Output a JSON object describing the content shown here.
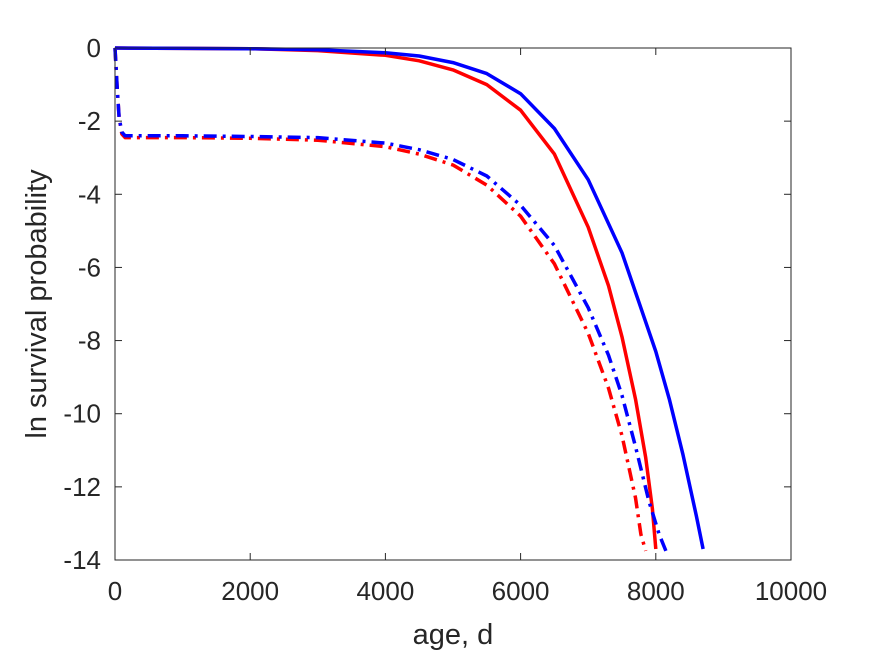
{
  "chart_data": {
    "type": "line",
    "title": "",
    "xlabel": "age, d",
    "ylabel": "ln survival probability",
    "xlim": [
      0,
      10000
    ],
    "ylim": [
      -14,
      0
    ],
    "xticks": [
      0,
      2000,
      4000,
      6000,
      8000,
      10000
    ],
    "yticks": [
      0,
      -2,
      -4,
      -6,
      -8,
      -10,
      -12,
      -14
    ],
    "xtick_labels": [
      "0",
      "2000",
      "4000",
      "6000",
      "8000",
      "10000"
    ],
    "ytick_labels": [
      "0",
      "-2",
      "-4",
      "-6",
      "-8",
      "-10",
      "-12",
      "-14"
    ],
    "grid": false,
    "legend": false,
    "series": [
      {
        "color": "#ff0000",
        "style": "solid",
        "x": [
          0,
          1000,
          2000,
          3000,
          4000,
          4500,
          5000,
          5500,
          6000,
          6500,
          7000,
          7300,
          7500,
          7700,
          7850,
          7950,
          8000
        ],
        "y": [
          0,
          -0.01,
          -0.02,
          -0.07,
          -0.2,
          -0.35,
          -0.6,
          -1.0,
          -1.7,
          -2.9,
          -4.9,
          -6.5,
          -7.9,
          -9.6,
          -11.2,
          -12.6,
          -13.7
        ]
      },
      {
        "color": "#0000ff",
        "style": "solid",
        "x": [
          0,
          1000,
          2000,
          3000,
          4000,
          4500,
          5000,
          5500,
          6000,
          6500,
          7000,
          7500,
          8000,
          8200,
          8400,
          8600,
          8700
        ],
        "y": [
          0,
          -0.01,
          -0.02,
          -0.05,
          -0.13,
          -0.22,
          -0.4,
          -0.7,
          -1.25,
          -2.2,
          -3.6,
          -5.6,
          -8.3,
          -9.6,
          -11.1,
          -12.8,
          -13.7
        ]
      },
      {
        "color": "#ff0000",
        "style": "dashdot",
        "x": [
          0,
          30,
          60,
          100,
          150,
          300,
          1000,
          2000,
          3000,
          4000,
          4500,
          5000,
          5500,
          6000,
          6500,
          7000,
          7300,
          7500,
          7700,
          7780,
          7850
        ],
        "y": [
          0,
          -1.0,
          -1.9,
          -2.35,
          -2.45,
          -2.45,
          -2.45,
          -2.47,
          -2.52,
          -2.7,
          -2.9,
          -3.2,
          -3.75,
          -4.6,
          -5.9,
          -7.8,
          -9.3,
          -10.6,
          -12.3,
          -13.3,
          -13.75
        ]
      },
      {
        "color": "#0000ff",
        "style": "dashdot",
        "x": [
          0,
          30,
          60,
          100,
          150,
          300,
          1000,
          2000,
          3000,
          4000,
          4500,
          5000,
          5500,
          6000,
          6500,
          7000,
          7300,
          7500,
          7700,
          7900,
          8050,
          8150
        ],
        "y": [
          0,
          -1.0,
          -1.9,
          -2.3,
          -2.4,
          -2.4,
          -2.4,
          -2.42,
          -2.45,
          -2.6,
          -2.78,
          -3.05,
          -3.5,
          -4.3,
          -5.4,
          -7.1,
          -8.4,
          -9.5,
          -10.9,
          -12.4,
          -13.3,
          -13.75
        ]
      }
    ]
  }
}
